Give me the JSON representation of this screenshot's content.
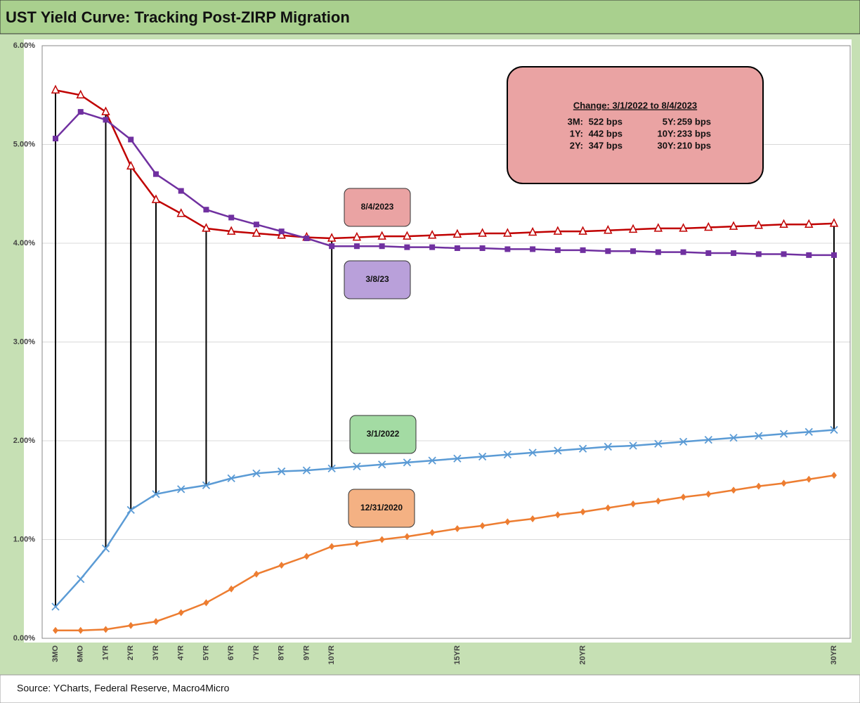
{
  "chart_data": {
    "type": "line",
    "title": "UST Yield Curve: Tracking Post-ZIRP Migration",
    "source": "Source: YCharts, Federal Reserve, Macro4Micro",
    "categories": [
      "3MO",
      "6MO",
      "1YR",
      "2YR",
      "3YR",
      "4YR",
      "5YR",
      "6YR",
      "7YR",
      "8YR",
      "9YR",
      "10YR",
      null,
      null,
      null,
      null,
      "15YR",
      null,
      null,
      null,
      null,
      "20YR",
      null,
      null,
      null,
      null,
      null,
      null,
      null,
      null,
      null,
      "30YR"
    ],
    "ylim": [
      0,
      6
    ],
    "yticks": [
      {
        "value": 0,
        "label": "0.00%"
      },
      {
        "value": 1,
        "label": "1.00%"
      },
      {
        "value": 2,
        "label": "2.00%"
      },
      {
        "value": 3,
        "label": "3.00%"
      },
      {
        "value": 4,
        "label": "4.00%"
      },
      {
        "value": 5,
        "label": "5.00%"
      },
      {
        "value": 6,
        "label": "6.00%"
      }
    ],
    "grid": true,
    "series": [
      {
        "name": "8/4/2023",
        "color": "#c00000",
        "marker": "triangle",
        "values": [
          5.55,
          5.5,
          5.33,
          4.78,
          4.44,
          4.3,
          4.15,
          4.12,
          4.1,
          4.08,
          4.06,
          4.05,
          4.06,
          4.07,
          4.07,
          4.08,
          4.09,
          4.1,
          4.1,
          4.11,
          4.12,
          4.12,
          4.13,
          4.14,
          4.15,
          4.15,
          4.16,
          4.17,
          4.18,
          4.19,
          4.19,
          4.2
        ]
      },
      {
        "name": "3/8/23",
        "color": "#7030a0",
        "marker": "square",
        "values": [
          5.06,
          5.33,
          5.25,
          5.05,
          4.7,
          4.53,
          4.34,
          4.26,
          4.19,
          4.12,
          4.05,
          3.97,
          3.97,
          3.97,
          3.96,
          3.96,
          3.95,
          3.95,
          3.94,
          3.94,
          3.93,
          3.93,
          3.92,
          3.92,
          3.91,
          3.91,
          3.9,
          3.9,
          3.89,
          3.89,
          3.88,
          3.88
        ]
      },
      {
        "name": "3/1/2022",
        "color": "#5b9bd5",
        "marker": "x",
        "values": [
          0.32,
          0.6,
          0.91,
          1.3,
          1.46,
          1.51,
          1.55,
          1.62,
          1.67,
          1.69,
          1.7,
          1.72,
          1.74,
          1.76,
          1.78,
          1.8,
          1.82,
          1.84,
          1.86,
          1.88,
          1.9,
          1.92,
          1.94,
          1.95,
          1.97,
          1.99,
          2.01,
          2.03,
          2.05,
          2.07,
          2.09,
          2.11
        ]
      },
      {
        "name": "12/31/2020",
        "color": "#ed7d31",
        "marker": "diamond",
        "values": [
          0.08,
          0.08,
          0.09,
          0.13,
          0.17,
          0.26,
          0.36,
          0.5,
          0.65,
          0.74,
          0.83,
          0.93,
          0.96,
          1.0,
          1.03,
          1.07,
          1.11,
          1.14,
          1.18,
          1.21,
          1.25,
          1.28,
          1.32,
          1.36,
          1.39,
          1.43,
          1.46,
          1.5,
          1.54,
          1.57,
          1.61,
          1.65
        ]
      }
    ],
    "annotation": {
      "title": "Change: 3/1/2022 to 8/4/2023",
      "rows": [
        [
          "3M:",
          "522 bps",
          "5Y:",
          "259 bps"
        ],
        [
          "1Y:",
          "442 bps",
          "10Y:",
          "233 bps"
        ],
        [
          "2Y:",
          "347 bps",
          "30Y:",
          "210 bps"
        ]
      ]
    }
  }
}
